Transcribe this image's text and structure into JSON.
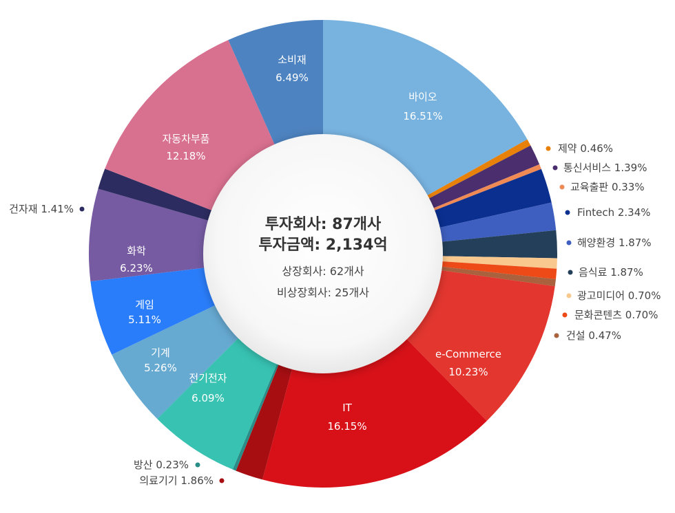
{
  "chart_data": {
    "type": "pie",
    "center": {
      "line1": "투자회사: 87개사",
      "line2": "투자금액: 2,134억",
      "line3": "상장회사: 62개사",
      "line4": "비상장회사: 25개사"
    },
    "slices": [
      {
        "label": "바이오",
        "value_text": "16.51%",
        "value": 16.51,
        "color": "#78b3e0",
        "display": "inside"
      },
      {
        "label": "제약",
        "value_text": "0.46%",
        "value": 0.46,
        "color": "#e8810a",
        "display": "outside"
      },
      {
        "label": "통신서비스",
        "value_text": "1.39%",
        "value": 1.39,
        "color": "#4a2e6e",
        "display": "outside"
      },
      {
        "label": "교육출판",
        "value_text": "0.33%",
        "value": 0.33,
        "color": "#f08a55",
        "display": "outside"
      },
      {
        "label": "Fintech",
        "value_text": "2.34%",
        "value": 2.34,
        "color": "#0a2f8f",
        "display": "outside"
      },
      {
        "label": "해양환경",
        "value_text": "1.87%",
        "value": 1.87,
        "color": "#3e5fc0",
        "display": "outside"
      },
      {
        "label": "음식료",
        "value_text": "1.87%",
        "value": 1.87,
        "color": "#243f5a",
        "display": "outside"
      },
      {
        "label": "광고미디어",
        "value_text": "0.70%",
        "value": 0.7,
        "color": "#f9c88e",
        "display": "outside"
      },
      {
        "label": "문화콘텐츠",
        "value_text": "0.70%",
        "value": 0.7,
        "color": "#ee4a18",
        "display": "outside"
      },
      {
        "label": "건설",
        "value_text": "0.47%",
        "value": 0.47,
        "color": "#a9613e",
        "display": "outside"
      },
      {
        "label": "e-Commerce",
        "value_text": "10.23%",
        "value": 10.23,
        "color": "#e2362f",
        "display": "inside"
      },
      {
        "label": "IT",
        "value_text": "16.15%",
        "value": 16.15,
        "color": "#d81118",
        "display": "inside"
      },
      {
        "label": "의료기기",
        "value_text": "1.86%",
        "value": 1.86,
        "color": "#a60e12",
        "display": "outside"
      },
      {
        "label": "방산",
        "value_text": "0.23%",
        "value": 0.23,
        "color": "#2b8d88",
        "display": "outside"
      },
      {
        "label": "전기전자",
        "value_text": "6.09%",
        "value": 6.09,
        "color": "#37c2b2",
        "display": "inside"
      },
      {
        "label": "기계",
        "value_text": "5.26%",
        "value": 5.26,
        "color": "#66a9d1",
        "display": "inside"
      },
      {
        "label": "게임",
        "value_text": "5.11%",
        "value": 5.11,
        "color": "#2a7dfa",
        "display": "inside"
      },
      {
        "label": "화학",
        "value_text": "6.23%",
        "value": 6.23,
        "color": "#765ba3",
        "display": "inside"
      },
      {
        "label": "건자재",
        "value_text": "1.41%",
        "value": 1.41,
        "color": "#2c2c60",
        "display": "outside"
      },
      {
        "label": "자동차부품",
        "value_text": "12.18%",
        "value": 12.18,
        "color": "#d8708f",
        "display": "inside"
      },
      {
        "label": "소비재",
        "value_text": "6.49%",
        "value": 6.49,
        "color": "#4d83c0",
        "display": "inside"
      }
    ]
  }
}
